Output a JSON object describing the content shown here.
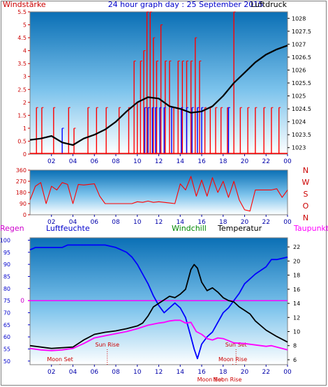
{
  "chart_data": [
    {
      "type": "line",
      "title": "24 hour graph day : 25 September 2015",
      "left_axis_label": "Windstärke",
      "right_axis_label": "Luftdruck",
      "left_ylim": [
        0,
        5.5
      ],
      "left_ticks": [
        "0",
        "0.5",
        "1",
        "1.5",
        "2",
        "2.5",
        "3",
        "3.5",
        "4",
        "4.5",
        "5",
        "5.5"
      ],
      "right_ylim": [
        1022.75,
        1028.25
      ],
      "right_ticks": [
        "1023",
        "1023.5",
        "1024",
        "1024.5",
        "1025",
        "1025.5",
        "1026",
        "1026.5",
        "1027",
        "1027.5",
        "1028"
      ],
      "x_ticks": [
        "02",
        "04",
        "06",
        "08",
        "10",
        "12",
        "14",
        "16",
        "18",
        "20",
        "22",
        "00"
      ],
      "series": [
        {
          "name": "Luftdruck",
          "color": "#000000",
          "x": [
            0,
            1,
            2,
            3,
            4,
            5,
            6,
            7,
            8,
            9,
            10,
            11,
            12,
            13,
            14,
            15,
            16,
            17,
            18,
            19,
            20,
            21,
            22,
            23,
            24
          ],
          "y": [
            1023.3,
            1023.35,
            1023.45,
            1023.2,
            1023.1,
            1023.35,
            1023.5,
            1023.7,
            1024.0,
            1024.4,
            1024.75,
            1024.95,
            1024.9,
            1024.6,
            1024.5,
            1024.35,
            1024.4,
            1024.6,
            1025.0,
            1025.5,
            1025.9,
            1026.3,
            1026.6,
            1026.8,
            1026.95
          ]
        },
        {
          "name": "Windstärke",
          "color": "#ff0000",
          "style": "bars",
          "gusts": [
            [
              0.6,
              1.8
            ],
            [
              1.1,
              1.8
            ],
            [
              2.2,
              1.8
            ],
            [
              3.6,
              1.8
            ],
            [
              4.1,
              1.0
            ],
            [
              5.4,
              1.8
            ],
            [
              6.2,
              1.8
            ],
            [
              7.1,
              1.8
            ],
            [
              8.3,
              1.8
            ],
            [
              9.2,
              1.8
            ],
            [
              9.7,
              3.6
            ],
            [
              10.0,
              2.0
            ],
            [
              10.3,
              3.6
            ],
            [
              10.6,
              4.0
            ],
            [
              10.9,
              5.5
            ],
            [
              11.2,
              5.5
            ],
            [
              11.5,
              4.5
            ],
            [
              11.8,
              3.6
            ],
            [
              12.2,
              5.0
            ],
            [
              12.6,
              3.6
            ],
            [
              13.0,
              3.6
            ],
            [
              13.4,
              1.8
            ],
            [
              13.8,
              3.6
            ],
            [
              14.2,
              3.6
            ],
            [
              14.6,
              3.6
            ],
            [
              15.0,
              3.6
            ],
            [
              15.4,
              4.5
            ],
            [
              15.8,
              3.6
            ],
            [
              16.3,
              1.8
            ],
            [
              16.8,
              1.8
            ],
            [
              17.3,
              1.8
            ],
            [
              17.8,
              1.8
            ],
            [
              18.4,
              1.8
            ],
            [
              19.0,
              5.5
            ],
            [
              19.6,
              1.8
            ],
            [
              20.3,
              1.8
            ],
            [
              21.0,
              1.8
            ],
            [
              21.8,
              1.8
            ],
            [
              22.5,
              1.8
            ],
            [
              23.2,
              1.8
            ]
          ]
        },
        {
          "name": "Windstärke (avg)",
          "color": "#0000ff",
          "style": "bars",
          "gusts": [
            [
              3.0,
              1.0
            ],
            [
              10.7,
              1.8
            ],
            [
              11.0,
              1.8
            ],
            [
              11.4,
              1.8
            ],
            [
              11.7,
              1.8
            ],
            [
              12.1,
              1.8
            ],
            [
              12.5,
              1.8
            ],
            [
              13.2,
              1.8
            ],
            [
              14.1,
              1.8
            ],
            [
              14.6,
              1.8
            ],
            [
              15.1,
              1.8
            ],
            [
              15.6,
              1.8
            ],
            [
              16.0,
              1.8
            ],
            [
              18.5,
              1.8
            ]
          ]
        }
      ]
    },
    {
      "type": "scatter",
      "title": "",
      "left_ylim": [
        0,
        360
      ],
      "left_ticks": [
        "0",
        "90",
        "180",
        "270",
        "360"
      ],
      "right_labels": [
        "N",
        "W",
        "S",
        "O",
        "N"
      ],
      "x_ticks": [
        "02",
        "04",
        "06",
        "08",
        "10",
        "12",
        "14",
        "16",
        "18",
        "20",
        "22",
        "00"
      ],
      "series": [
        {
          "name": "Windrichtung",
          "color": "#ff0000",
          "x": [
            0,
            0.5,
            1,
            1.5,
            2,
            2.5,
            3,
            3.5,
            4,
            4.5,
            5,
            5.5,
            6,
            6.5,
            7,
            7.5,
            8,
            8.5,
            9,
            9.5,
            10,
            10.5,
            11,
            11.5,
            12,
            12.5,
            13,
            13.5,
            14,
            14.5,
            15,
            15.5,
            16,
            16.5,
            17,
            17.5,
            18,
            18.5,
            19,
            19.5,
            20,
            20.5,
            21,
            21.5,
            22,
            22.5,
            23,
            23.5,
            24
          ],
          "y": [
            120,
            230,
            260,
            90,
            230,
            200,
            260,
            245,
            90,
            245,
            240,
            245,
            250,
            150,
            90,
            90,
            90,
            90,
            90,
            90,
            105,
            100,
            110,
            100,
            105,
            100,
            95,
            90,
            250,
            200,
            310,
            150,
            280,
            150,
            300,
            180,
            270,
            140,
            270,
            120,
            40,
            30,
            200,
            200,
            200,
            200,
            210,
            140,
            200
          ]
        }
      ]
    },
    {
      "type": "line",
      "title": "",
      "legend": [
        "Regen",
        "Luftfeuchte",
        "Windchill",
        "Temperatur",
        "Taupunkt"
      ],
      "left_ylim": [
        48.5,
        101
      ],
      "left_ticks": [
        "50",
        "55",
        "60",
        "65",
        "70",
        "75",
        "80",
        "85",
        "90",
        "95",
        "100"
      ],
      "right_ylim": [
        5.3,
        23.3
      ],
      "right_ticks": [
        "6",
        "8",
        "10",
        "12",
        "14",
        "16",
        "18",
        "20",
        "22"
      ],
      "rain_zero_label": "0",
      "x_ticks": [
        "02",
        "04",
        "06",
        "08",
        "10",
        "12",
        "14",
        "16",
        "18",
        "20",
        "22",
        "00"
      ],
      "events": [
        {
          "label": "Moon Set",
          "x": 2.8,
          "level": "low"
        },
        {
          "label": "Sun Rise",
          "x": 7.2,
          "level": "high"
        },
        {
          "label": "Sun Set",
          "x": 19.2,
          "level": "high"
        },
        {
          "label": "Moon Rise",
          "x": 18.9,
          "level": "low"
        },
        {
          "label": "Moon Set",
          "x": 16.8,
          "level": "bottom"
        },
        {
          "label": "Moon Rise",
          "x": 18.4,
          "level": "bottom"
        }
      ],
      "series": [
        {
          "name": "Luftfeuchte",
          "color": "#0000ff",
          "axis": "left",
          "x": [
            0,
            0.5,
            1,
            2,
            3,
            3.5,
            4,
            6,
            7,
            8,
            8.5,
            9,
            9.5,
            10,
            10.5,
            11,
            11.5,
            12,
            12.5,
            13,
            13.5,
            14,
            14.5,
            15,
            15.3,
            15.6,
            16,
            16.5,
            17,
            17.5,
            18,
            18.5,
            19,
            19.5,
            20,
            21,
            22,
            22.5,
            23,
            24
          ],
          "y": [
            96,
            97,
            97,
            97,
            97,
            98,
            98,
            98,
            98,
            97,
            96,
            95,
            93,
            90,
            86,
            82,
            77,
            73,
            70,
            72,
            74,
            72,
            68,
            60,
            55,
            51,
            57,
            60,
            62,
            66,
            70,
            72,
            75,
            78,
            82,
            86,
            89,
            92,
            92,
            93
          ]
        },
        {
          "name": "Temperatur",
          "color": "#000000",
          "axis": "right",
          "x": [
            0,
            1,
            2,
            3,
            4,
            5,
            6,
            7,
            8,
            9,
            10,
            10.5,
            11,
            11.5,
            12,
            12.5,
            13,
            13.5,
            14,
            14.5,
            15,
            15.3,
            15.6,
            16,
            16.5,
            17,
            17.5,
            18,
            18.5,
            19,
            19.5,
            20,
            20.5,
            21,
            22,
            23,
            24
          ],
          "y": [
            8.0,
            7.8,
            7.6,
            7.7,
            7.8,
            8.8,
            9.6,
            9.9,
            10.1,
            10.4,
            10.8,
            11.2,
            12.2,
            13.5,
            14.0,
            14.5,
            15.0,
            14.8,
            15.3,
            16.0,
            18.8,
            19.5,
            19.0,
            17.0,
            15.8,
            16.2,
            15.6,
            14.8,
            14.4,
            14.2,
            13.5,
            13.0,
            12.5,
            11.5,
            10.2,
            9.3,
            8.5
          ]
        },
        {
          "name": "Taupunkt",
          "color": "#ff00ff",
          "axis": "right",
          "x": [
            0,
            1,
            2,
            3,
            4,
            5,
            6,
            7,
            8,
            9,
            10,
            11,
            12,
            12.5,
            13,
            13.5,
            14,
            14.5,
            15,
            15.5,
            16,
            16.5,
            17,
            17.5,
            18,
            18.5,
            19,
            20,
            21,
            22,
            22.5,
            23,
            24
          ],
          "y": [
            7.6,
            7.4,
            7.3,
            7.4,
            7.6,
            8.3,
            9.1,
            9.4,
            9.7,
            10.0,
            10.4,
            10.9,
            11.2,
            11.3,
            11.5,
            11.6,
            11.6,
            11.2,
            11.3,
            10.0,
            9.6,
            9.0,
            8.8,
            9.1,
            9.0,
            8.7,
            8.4,
            8.3,
            8.1,
            7.9,
            8.0,
            7.8,
            7.4
          ]
        }
      ]
    }
  ]
}
